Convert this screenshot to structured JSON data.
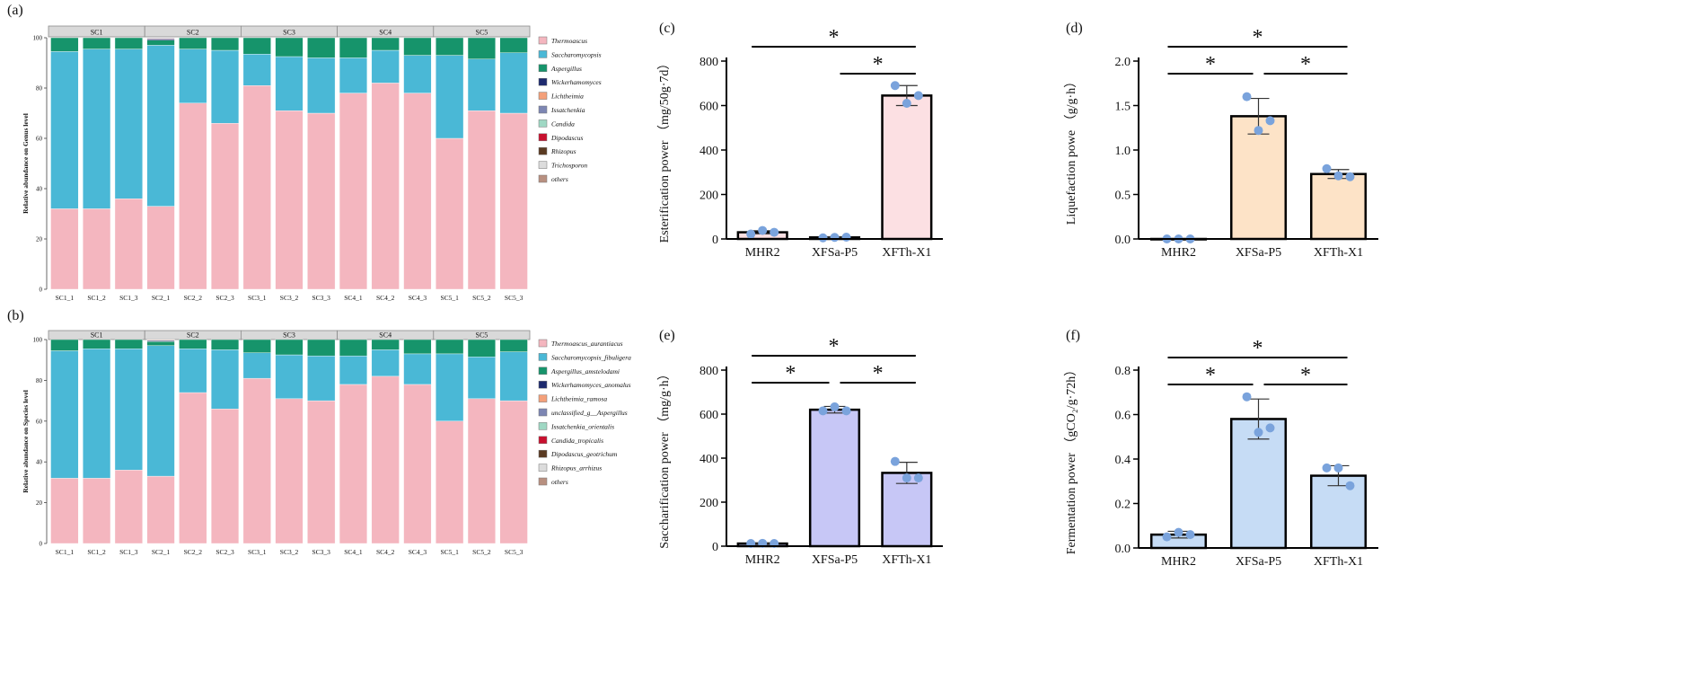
{
  "chart_data": [
    {
      "id": "a",
      "panel_label": "(a)",
      "type": "bar",
      "stacked": true,
      "ylabel": "Relative abundance on Genus level",
      "ylim": [
        0,
        100
      ],
      "yticks": [
        0,
        20,
        40,
        60,
        80,
        100
      ],
      "groups": [
        "SC1",
        "SC2",
        "SC3",
        "SC4",
        "SC5"
      ],
      "categories": [
        "SC1_1",
        "SC1_2",
        "SC1_3",
        "SC2_1",
        "SC2_2",
        "SC2_3",
        "SC3_1",
        "SC3_2",
        "SC3_3",
        "SC4_1",
        "SC4_2",
        "SC4_3",
        "SC5_1",
        "SC5_2",
        "SC5_3"
      ],
      "series": [
        {
          "name": "Thermoascus",
          "color": "#f4b6bf",
          "values": [
            32,
            32,
            36,
            33,
            74,
            66,
            81,
            71,
            70,
            78,
            82,
            78,
            60,
            71,
            70
          ]
        },
        {
          "name": "Saccharomycopsis",
          "color": "#4ab8d6",
          "values": [
            62.5,
            63.5,
            59.5,
            64,
            21.5,
            29,
            12.5,
            21.5,
            22,
            14,
            13,
            15,
            33,
            20.5,
            24
          ]
        },
        {
          "name": "Aspergillus",
          "color": "#16946b",
          "values": [
            5.5,
            4.5,
            4.5,
            2,
            4.5,
            5,
            6.5,
            7.5,
            8,
            8,
            5,
            7,
            7,
            8.5,
            6
          ]
        },
        {
          "name": "Wickerhamomyces",
          "color": "#1d2a6e",
          "values": [
            0,
            0,
            0,
            0.5,
            0,
            0,
            0,
            0,
            0,
            0,
            0,
            0,
            0,
            0,
            0
          ]
        },
        {
          "name": "Lichtheimia",
          "color": "#f4a07a",
          "values": [
            0,
            0,
            0,
            0.3,
            0,
            0,
            0,
            0,
            0,
            0,
            0,
            0,
            0,
            0,
            0
          ]
        },
        {
          "name": "Issatchenkia",
          "color": "#7d86b3",
          "values": [
            0,
            0,
            0,
            0.2,
            0,
            0,
            0,
            0,
            0,
            0,
            0,
            0,
            0,
            0,
            0
          ]
        },
        {
          "name": "Candida",
          "color": "#9fd8c4",
          "values": [
            0,
            0,
            0,
            0,
            0,
            0,
            0,
            0,
            0,
            0,
            0,
            0,
            0,
            0,
            0
          ]
        },
        {
          "name": "Dipodascus",
          "color": "#c8102e",
          "values": [
            0,
            0,
            0,
            0,
            0,
            0,
            0,
            0,
            0,
            0,
            0,
            0,
            0,
            0,
            0
          ]
        },
        {
          "name": "Rhizopus",
          "color": "#5a3a22",
          "values": [
            0,
            0,
            0,
            0,
            0,
            0,
            0,
            0,
            0,
            0,
            0,
            0,
            0,
            0,
            0
          ]
        },
        {
          "name": "Trichosporon",
          "color": "#dcdcdc",
          "values": [
            0,
            0,
            0,
            0,
            0,
            0,
            0,
            0,
            0,
            0,
            0,
            0,
            0,
            0,
            0
          ]
        },
        {
          "name": "others",
          "color": "#b89080",
          "values": [
            0,
            0,
            0,
            0,
            0,
            0,
            0,
            0,
            0,
            0,
            0,
            0,
            0,
            0,
            0
          ]
        }
      ]
    },
    {
      "id": "b",
      "panel_label": "(b)",
      "type": "bar",
      "stacked": true,
      "ylabel": "Relative abundance on Species level",
      "ylim": [
        0,
        100
      ],
      "yticks": [
        0,
        20,
        40,
        60,
        80,
        100
      ],
      "groups": [
        "SC1",
        "SC2",
        "SC3",
        "SC4",
        "SC5"
      ],
      "categories": [
        "SC1_1",
        "SC1_2",
        "SC1_3",
        "SC2_1",
        "SC2_2",
        "SC2_3",
        "SC3_1",
        "SC3_2",
        "SC3_3",
        "SC4_1",
        "SC4_2",
        "SC4_3",
        "SC5_1",
        "SC5_2",
        "SC5_3"
      ],
      "series": [
        {
          "name": "Thermoascus_aurantiacus",
          "color": "#f4b6bf",
          "values": [
            32,
            32,
            36,
            33,
            74,
            66,
            81,
            71,
            70,
            78,
            82,
            78,
            60,
            71,
            70
          ]
        },
        {
          "name": "Saccharomycopsis_fibuligera",
          "color": "#4ab8d6",
          "values": [
            62.5,
            63.5,
            59.5,
            64,
            21.5,
            29,
            12.5,
            21.5,
            22,
            14,
            13,
            15,
            33,
            20.5,
            24
          ]
        },
        {
          "name": "Aspergillus_amstelodami",
          "color": "#16946b",
          "values": [
            5.5,
            4.5,
            4.5,
            2,
            4.5,
            5,
            6.5,
            7.5,
            8,
            8,
            5,
            7,
            7,
            8.5,
            6
          ]
        },
        {
          "name": "Wickerhamomyces_anomalus",
          "color": "#1d2a6e",
          "values": [
            0,
            0,
            0,
            0.5,
            0,
            0,
            0,
            0,
            0,
            0,
            0,
            0,
            0,
            0,
            0
          ]
        },
        {
          "name": "Lichtheimia_ramosa",
          "color": "#f4a07a",
          "values": [
            0,
            0,
            0,
            0.3,
            0,
            0,
            0,
            0,
            0,
            0,
            0,
            0,
            0,
            0,
            0
          ]
        },
        {
          "name": "unclassified_g__Aspergillus",
          "color": "#7d86b3",
          "values": [
            0,
            0,
            0,
            0.2,
            0,
            0,
            0,
            0,
            0,
            0,
            0,
            0,
            0,
            0,
            0
          ]
        },
        {
          "name": "Issatchenkia_orientalis",
          "color": "#9fd8c4",
          "values": [
            0,
            0,
            0,
            0,
            0,
            0,
            0,
            0,
            0,
            0,
            0,
            0,
            0,
            0,
            0
          ]
        },
        {
          "name": "Candida_tropicalis",
          "color": "#c8102e",
          "values": [
            0,
            0,
            0,
            0,
            0,
            0,
            0,
            0,
            0,
            0,
            0,
            0,
            0,
            0,
            0
          ]
        },
        {
          "name": "Dipodascus_geotrichum",
          "color": "#5a3a22",
          "values": [
            0,
            0,
            0,
            0,
            0,
            0,
            0,
            0,
            0,
            0,
            0,
            0,
            0,
            0,
            0
          ]
        },
        {
          "name": "Rhizopus_arrhizus",
          "color": "#dcdcdc",
          "values": [
            0,
            0,
            0,
            0,
            0,
            0,
            0,
            0,
            0,
            0,
            0,
            0,
            0,
            0,
            0
          ]
        },
        {
          "name": "others",
          "color": "#b89080",
          "values": [
            0,
            0,
            0,
            0,
            0,
            0,
            0,
            0,
            0,
            0,
            0,
            0,
            0,
            0,
            0
          ]
        }
      ]
    },
    {
      "id": "c",
      "panel_label": "(c)",
      "type": "bar",
      "ylabel": "Esterification power （mg/50g·7d）",
      "ylim": [
        0,
        800
      ],
      "yticks": [
        0,
        200,
        400,
        600,
        800
      ],
      "tick_labels": [
        "0",
        "200",
        "400",
        "600",
        "800"
      ],
      "categories": [
        "MHR2",
        "XFSa-P5",
        "XFTh-X1"
      ],
      "values": [
        30,
        7,
        645
      ],
      "errors": [
        7,
        3,
        45
      ],
      "points": [
        [
          22,
          38,
          30
        ],
        [
          5,
          7,
          8
        ],
        [
          690,
          610,
          645
        ]
      ],
      "bar_color": "#fce0e3",
      "point_color": "#7aa3dc",
      "significance": [
        {
          "from": 0,
          "to": 2,
          "label": "*",
          "level": 2
        },
        {
          "from": 1,
          "to": 2,
          "label": "*",
          "level": 1
        }
      ]
    },
    {
      "id": "d",
      "panel_label": "(d)",
      "type": "bar",
      "ylabel": "Liquefaction powe （g/g·h）",
      "ylim": [
        0,
        2.0
      ],
      "yticks": [
        0,
        0.5,
        1.0,
        1.5,
        2.0
      ],
      "tick_labels": [
        "0.0",
        "0.5",
        "1.0",
        "1.5",
        "2.0"
      ],
      "categories": [
        "MHR2",
        "XFSa-P5",
        "XFTh-X1"
      ],
      "values": [
        0,
        1.38,
        0.73
      ],
      "errors": [
        0,
        0.2,
        0.05
      ],
      "points": [
        [
          0,
          0,
          0
        ],
        [
          1.6,
          1.22,
          1.33
        ],
        [
          0.79,
          0.71,
          0.7
        ]
      ],
      "bar_color": "#fde3c7",
      "point_color": "#7aa3dc",
      "significance": [
        {
          "from": 0,
          "to": 2,
          "label": "*",
          "level": 2
        },
        {
          "from": 0,
          "to": 1,
          "label": "*",
          "level": 1
        },
        {
          "from": 1,
          "to": 2,
          "label": "*",
          "level": 1
        }
      ]
    },
    {
      "id": "e",
      "panel_label": "(e)",
      "type": "bar",
      "ylabel": "Saccharification power （mg/g·h）",
      "ylim": [
        0,
        800
      ],
      "yticks": [
        0,
        200,
        400,
        600,
        800
      ],
      "tick_labels": [
        "0",
        "200",
        "400",
        "600",
        "800"
      ],
      "categories": [
        "MHR2",
        "XFSa-P5",
        "XFTh-X1"
      ],
      "values": [
        12,
        620,
        333
      ],
      "errors": [
        3,
        15,
        48
      ],
      "points": [
        [
          12,
          13,
          12
        ],
        [
          615,
          633,
          615
        ],
        [
          385,
          310,
          310
        ]
      ],
      "bar_color": "#c7c7f6",
      "point_color": "#7aa3dc",
      "significance": [
        {
          "from": 0,
          "to": 2,
          "label": "*",
          "level": 2
        },
        {
          "from": 0,
          "to": 1,
          "label": "*",
          "level": 1
        },
        {
          "from": 1,
          "to": 2,
          "label": "*",
          "level": 1
        }
      ]
    },
    {
      "id": "f",
      "panel_label": "(f)",
      "type": "bar",
      "ylabel": "Fermentation power （gCO₂/g·72h）",
      "ylim": [
        0,
        0.8
      ],
      "yticks": [
        0,
        0.2,
        0.4,
        0.6,
        0.8
      ],
      "tick_labels": [
        "0.0",
        "0.2",
        "0.4",
        "0.6",
        "0.8"
      ],
      "categories": [
        "MHR2",
        "XFSa-P5",
        "XFTh-X1"
      ],
      "values": [
        0.06,
        0.58,
        0.325
      ],
      "errors": [
        0.015,
        0.09,
        0.045
      ],
      "points": [
        [
          0.05,
          0.07,
          0.06
        ],
        [
          0.68,
          0.52,
          0.54
        ],
        [
          0.36,
          0.36,
          0.28
        ]
      ],
      "bar_color": "#c6dcf5",
      "point_color": "#7aa3dc",
      "significance": [
        {
          "from": 0,
          "to": 2,
          "label": "*",
          "level": 2
        },
        {
          "from": 0,
          "to": 1,
          "label": "*",
          "level": 1
        },
        {
          "from": 1,
          "to": 2,
          "label": "*",
          "level": 1
        }
      ]
    }
  ]
}
